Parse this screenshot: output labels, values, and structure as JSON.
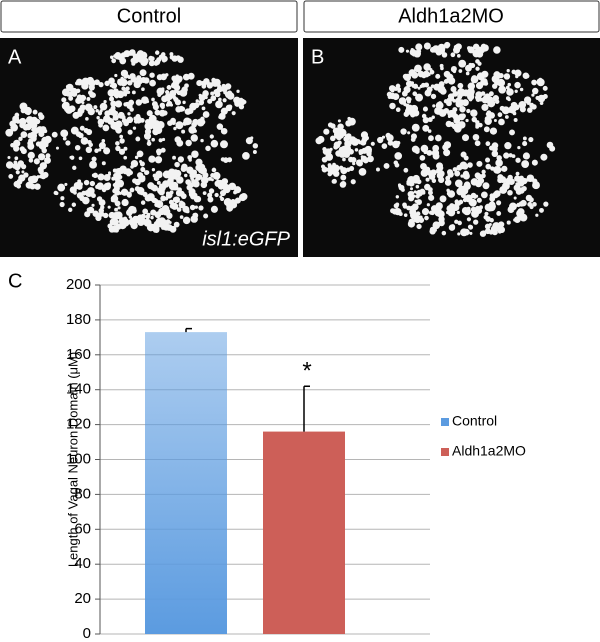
{
  "panel_headers": [
    "Control",
    "Aldh1a2MO"
  ],
  "panel_labels": [
    "A",
    "B",
    "C"
  ],
  "image_caption": "isl1:eGFP",
  "chart_data": {
    "type": "bar",
    "y_label": "Length of Vagal Neuron Domain (μM)",
    "series": [
      {
        "name": "Control",
        "color": "#5b9be0",
        "values": [
          173
        ],
        "errors": [
          2
        ]
      },
      {
        "name": "Aldh1a2MO",
        "color": "#cd5f58",
        "values": [
          116
        ],
        "errors": [
          26
        ]
      }
    ],
    "annotation": "*",
    "ylim": [
      0,
      200
    ],
    "yticks": [
      0,
      20,
      40,
      60,
      80,
      100,
      120,
      140,
      160,
      180,
      200
    ],
    "grid": true,
    "legend": "right"
  }
}
